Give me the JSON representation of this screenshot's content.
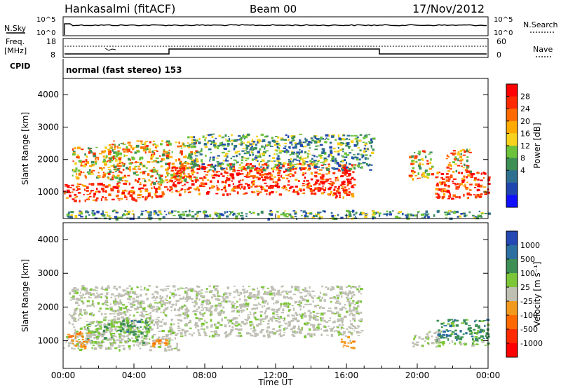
{
  "header": {
    "station": "Hankasalmi (fitACF)",
    "beam": "Beam 00",
    "date": "17/Nov/2012"
  },
  "noise_panel": {
    "left_label": "N.Sky",
    "left_ticks": [
      "10^5",
      "10^0"
    ],
    "right_label": "N.Search",
    "right_ticks": [
      "10^5",
      "10^0"
    ]
  },
  "freq_panel": {
    "left_label_line1": "Freq.",
    "left_label_line2": "[MHz]",
    "left_ticks": [
      "18",
      "8"
    ],
    "right_label": "Nave",
    "right_ticks": [
      "60",
      "0"
    ]
  },
  "cpid": {
    "label": "CPID",
    "text": "normal (fast stereo) 153"
  },
  "x_axis": {
    "label": "Time UT",
    "ticks": [
      "00:00",
      "04:00",
      "08:00",
      "12:00",
      "16:00",
      "20:00",
      "00:00"
    ]
  },
  "chart_data": [
    {
      "type": "heatmap",
      "title": "",
      "xlabel": "Time UT",
      "ylabel": "Slant Range [km]",
      "xlim": [
        0,
        24
      ],
      "ylim": [
        180,
        4500
      ],
      "yticks": [
        1000,
        2000,
        3000,
        4000
      ],
      "y_tick_labels": [
        "1000",
        "2000",
        "3000",
        "4000"
      ],
      "colorbar": {
        "label": "Power [dB]",
        "tick_labels": [
          "28",
          "24",
          "20",
          "16",
          "12",
          "8",
          "4"
        ],
        "colors": [
          "#ff0000",
          "#ff2a00",
          "#ff6a00",
          "#ffaa00",
          "#f6d21e",
          "#6cc23a",
          "#3d8f56",
          "#2f6f8f",
          "#1f45b0",
          "#1010ff"
        ]
      },
      "regions": [
        {
          "t0": 0.0,
          "t1": 5.8,
          "r0": 750,
          "r1": 1300,
          "level": "high"
        },
        {
          "t0": 0.5,
          "t1": 3.2,
          "r0": 1450,
          "r1": 2400,
          "level": "mid"
        },
        {
          "t0": 2.5,
          "t1": 7.5,
          "r0": 1300,
          "r1": 2600,
          "level": "mid"
        },
        {
          "t0": 5.8,
          "t1": 16.5,
          "r0": 950,
          "r1": 1900,
          "level": "high"
        },
        {
          "t0": 7.0,
          "t1": 17.5,
          "r0": 1700,
          "r1": 2800,
          "level": "low"
        },
        {
          "t0": 15.2,
          "t1": 16.3,
          "r0": 850,
          "r1": 1250,
          "level": "high"
        },
        {
          "t0": 19.5,
          "t1": 20.8,
          "r0": 1400,
          "r1": 2300,
          "level": "mid"
        },
        {
          "t0": 21.0,
          "t1": 24.0,
          "r0": 800,
          "r1": 1650,
          "level": "high"
        },
        {
          "t0": 21.5,
          "t1": 23.0,
          "r0": 1650,
          "r1": 2350,
          "level": "mid"
        },
        {
          "t0": 0.0,
          "t1": 24.0,
          "r0": 200,
          "r1": 450,
          "level": "low"
        }
      ]
    },
    {
      "type": "heatmap",
      "title": "",
      "xlabel": "Time UT",
      "ylabel": "Slant Range [km]",
      "xlim": [
        0,
        24
      ],
      "ylim": [
        180,
        4500
      ],
      "yticks": [
        1000,
        2000,
        3000,
        4000
      ],
      "y_tick_labels": [
        "1000",
        "2000",
        "3000",
        "4000"
      ],
      "colorbar": {
        "label": "Velocity [m s⁻¹]",
        "tick_labels": [
          "1000",
          "500",
          "100",
          "25",
          "-25",
          "-100",
          "-500",
          "-1000"
        ],
        "colors": [
          "#2448b4",
          "#2d6fa0",
          "#3d8f56",
          "#7cc638",
          "#bfbfb4",
          "#f29a1e",
          "#ff6a00",
          "#ff2a00",
          "#ff0000"
        ]
      },
      "regions": [
        {
          "t0": 0.3,
          "t1": 16.8,
          "r0": 1150,
          "r1": 2650,
          "level": "gray"
        },
        {
          "t0": 0.0,
          "t1": 6.5,
          "r0": 750,
          "r1": 1150,
          "level": "gray"
        },
        {
          "t0": 1.0,
          "t1": 4.8,
          "r0": 950,
          "r1": 1600,
          "level": "green"
        },
        {
          "t0": 3.2,
          "t1": 4.9,
          "r0": 1250,
          "r1": 1650,
          "level": "darkgreen"
        },
        {
          "t0": 0.2,
          "t1": 1.4,
          "r0": 800,
          "r1": 1300,
          "level": "orange"
        },
        {
          "t0": 5.0,
          "t1": 5.8,
          "r0": 850,
          "r1": 1050,
          "level": "orange"
        },
        {
          "t0": 15.6,
          "t1": 16.4,
          "r0": 800,
          "r1": 1150,
          "level": "orange"
        },
        {
          "t0": 21.0,
          "t1": 24.0,
          "r0": 1050,
          "r1": 1650,
          "level": "darkgreen"
        },
        {
          "t0": 19.7,
          "t1": 21.2,
          "r0": 850,
          "r1": 1300,
          "level": "gray"
        },
        {
          "t0": 21.0,
          "t1": 24.0,
          "r0": 880,
          "r1": 1050,
          "level": "green"
        }
      ]
    }
  ]
}
